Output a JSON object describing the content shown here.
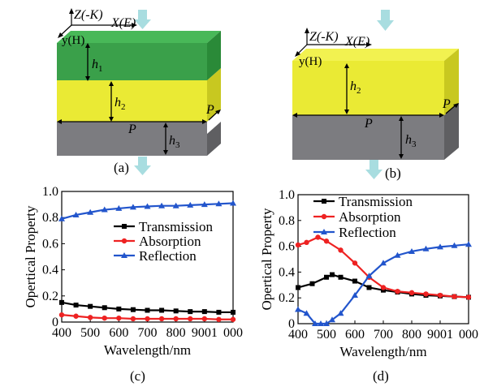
{
  "figure": {
    "a": {
      "panel_label": "(a)",
      "axis_z": "Z(-K)",
      "axis_x": "X(E)",
      "axis_y": "y(H)",
      "h1": "h",
      "h1_sub": "1",
      "h2": "h",
      "h2_sub": "2",
      "h3": "h",
      "h3_sub": "3",
      "p_side": "P",
      "p_front": "P",
      "colors": {
        "top_layer": "#3aa04a",
        "mid_layer": "#e8e830",
        "bottom_layer": "#7a7a7e",
        "arrow": "#a8dde0"
      }
    },
    "b": {
      "panel_label": "(b)",
      "axis_z": "Z(-K)",
      "axis_x": "X(E)",
      "axis_y": "y(H)",
      "h2": "h",
      "h2_sub": "2",
      "h3": "h",
      "h3_sub": "3",
      "p_side": "P",
      "p_front": "P",
      "colors": {
        "mid_layer": "#e8e830",
        "bottom_layer": "#7a7a7e",
        "arrow": "#a8dde0"
      }
    },
    "c": {
      "panel_label": "(c)"
    },
    "d": {
      "panel_label": "(d)"
    }
  },
  "chart_data": [
    {
      "type": "line",
      "xlabel": "Wavelength/nm",
      "ylabel": "Opertical Property",
      "xlim": [
        400,
        1000
      ],
      "ylim": [
        0,
        1.0
      ],
      "xticks": [
        "400",
        "500",
        "600",
        "700",
        "800",
        "9001",
        "000"
      ],
      "xtick_values": [
        400,
        500,
        600,
        700,
        800,
        900,
        1000
      ],
      "yticks": [
        "0",
        "0.2",
        "0.4",
        "0.6",
        "0.8",
        "1.0"
      ],
      "ytick_values": [
        0,
        0.2,
        0.4,
        0.6,
        0.8,
        1.0
      ],
      "legend_position": "center-right",
      "series": [
        {
          "name": "Transmission",
          "color": "#000000",
          "marker": "square",
          "x": [
            400,
            450,
            500,
            550,
            600,
            650,
            700,
            750,
            800,
            850,
            900,
            950,
            1000
          ],
          "y": [
            0.15,
            0.13,
            0.12,
            0.11,
            0.1,
            0.095,
            0.09,
            0.09,
            0.085,
            0.08,
            0.08,
            0.075,
            0.075
          ]
        },
        {
          "name": "Absorption",
          "color": "#ee2222",
          "marker": "circle",
          "x": [
            400,
            450,
            500,
            550,
            600,
            650,
            700,
            750,
            800,
            850,
            900,
            950,
            1000
          ],
          "y": [
            0.055,
            0.045,
            0.035,
            0.03,
            0.03,
            0.025,
            0.025,
            0.025,
            0.025,
            0.025,
            0.025,
            0.02,
            0.02
          ]
        },
        {
          "name": "Reflection",
          "color": "#2255cc",
          "marker": "triangle",
          "x": [
            400,
            450,
            500,
            550,
            600,
            650,
            700,
            750,
            800,
            850,
            900,
            950,
            1000
          ],
          "y": [
            0.79,
            0.82,
            0.84,
            0.86,
            0.87,
            0.88,
            0.885,
            0.89,
            0.89,
            0.895,
            0.9,
            0.905,
            0.91
          ]
        }
      ]
    },
    {
      "type": "line",
      "xlabel": "Wavelength/nm",
      "ylabel": "Opertical Property",
      "xlim": [
        400,
        1000
      ],
      "ylim": [
        0,
        1.0
      ],
      "xticks": [
        "400",
        "500",
        "600",
        "700",
        "800",
        "9001",
        "000"
      ],
      "xtick_values": [
        400,
        500,
        600,
        700,
        800,
        900,
        1000
      ],
      "yticks": [
        "0",
        "0.2",
        "0.4",
        "0.6",
        "0.8",
        "1.0"
      ],
      "ytick_values": [
        0,
        0.2,
        0.4,
        0.6,
        0.8,
        1.0
      ],
      "legend_position": "top-center",
      "series": [
        {
          "name": "Transmission",
          "color": "#000000",
          "marker": "square",
          "x": [
            400,
            450,
            500,
            520,
            550,
            600,
            650,
            700,
            750,
            800,
            850,
            900,
            950,
            1000
          ],
          "y": [
            0.28,
            0.31,
            0.36,
            0.38,
            0.36,
            0.33,
            0.28,
            0.26,
            0.245,
            0.23,
            0.22,
            0.215,
            0.21,
            0.205
          ]
        },
        {
          "name": "Absorption",
          "color": "#ee2222",
          "marker": "circle",
          "x": [
            400,
            430,
            470,
            500,
            550,
            600,
            650,
            700,
            750,
            800,
            850,
            900,
            950,
            1000
          ],
          "y": [
            0.61,
            0.63,
            0.67,
            0.64,
            0.57,
            0.47,
            0.36,
            0.28,
            0.25,
            0.24,
            0.23,
            0.22,
            0.21,
            0.205
          ]
        },
        {
          "name": "Reflection",
          "color": "#2255cc",
          "marker": "triangle",
          "x": [
            400,
            430,
            460,
            480,
            500,
            520,
            550,
            600,
            650,
            700,
            750,
            800,
            850,
            900,
            950,
            1000
          ],
          "y": [
            0.11,
            0.08,
            0.0,
            0.0,
            0.0,
            0.03,
            0.08,
            0.22,
            0.37,
            0.47,
            0.53,
            0.56,
            0.58,
            0.595,
            0.605,
            0.615
          ]
        }
      ]
    }
  ]
}
